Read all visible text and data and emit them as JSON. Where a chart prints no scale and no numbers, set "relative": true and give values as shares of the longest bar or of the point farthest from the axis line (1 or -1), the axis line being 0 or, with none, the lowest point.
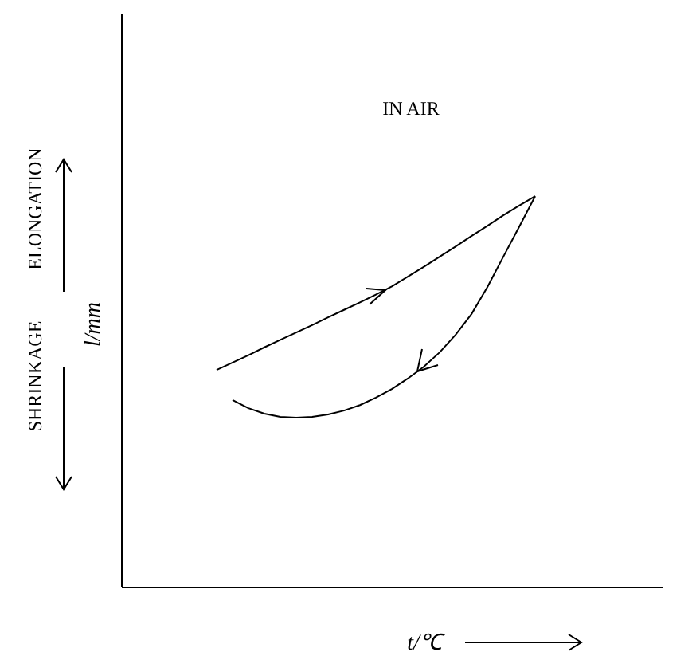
{
  "chart_data": {
    "type": "line",
    "relative": true,
    "grid": false,
    "categories": [
      null,
      null,
      null,
      null,
      null,
      null,
      null,
      null,
      null,
      null,
      null,
      null,
      null,
      null,
      null,
      null,
      null,
      null,
      null,
      null,
      null,
      null,
      null,
      null,
      null,
      null,
      null,
      null,
      null,
      null,
      null,
      null,
      null,
      null,
      null
    ],
    "xlabel": "t/℃",
    "ylabel": "l/mm",
    "annotations": [
      "IN AIR",
      "ELONGATION",
      "SHRINKAGE"
    ],
    "series": [
      {
        "color": "#000000",
        "values": [
          null,
          null,
          null,
          null,
          null,
          null,
          0.555,
          0.574,
          0.593,
          0.613,
          0.632,
          0.651,
          0.67,
          0.69,
          0.709,
          0.728,
          0.748,
          0.769,
          0.794,
          0.819,
          0.845,
          0.871,
          0.898,
          0.924,
          0.951,
          0.976,
          1,
          null,
          null,
          null,
          null,
          null,
          null,
          null,
          null
        ]
      },
      {
        "color": "#000000",
        "values": [
          null,
          null,
          null,
          null,
          null,
          null,
          null,
          0.478,
          0.457,
          0.443,
          0.435,
          0.433,
          0.435,
          0.441,
          0.451,
          0.465,
          0.484,
          0.506,
          0.533,
          0.563,
          0.6,
          0.645,
          0.698,
          0.767,
          0.845,
          0.922,
          1,
          null,
          null,
          null,
          null,
          null,
          null,
          null,
          null
        ]
      }
    ]
  }
}
